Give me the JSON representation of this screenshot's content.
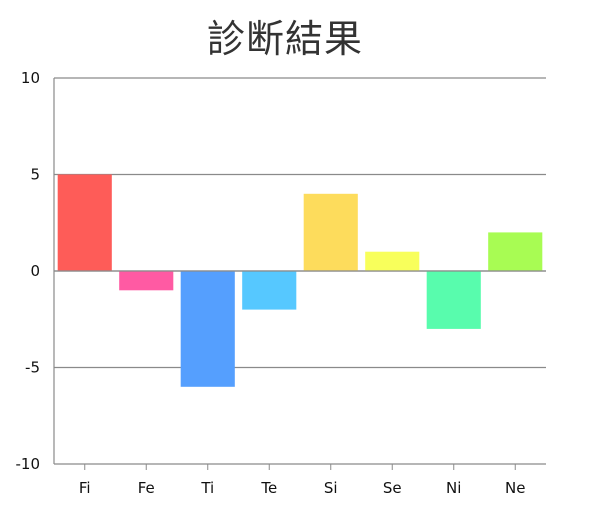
{
  "chart_data": {
    "type": "bar",
    "title": "診断結果",
    "categories": [
      "Fi",
      "Fe",
      "Ti",
      "Te",
      "Si",
      "Se",
      "Ni",
      "Ne"
    ],
    "values": [
      5,
      -1,
      -6,
      -2,
      4,
      1,
      -3,
      2
    ],
    "colors": [
      "#fe5c58",
      "#ff5aa3",
      "#559ffe",
      "#56c8ff",
      "#fddc5c",
      "#f8ff5b",
      "#58fcad",
      "#a8fc53"
    ],
    "ylim": [
      -10,
      10
    ],
    "yticks": [
      10,
      5,
      0,
      -5,
      -10
    ],
    "ytick_labels": [
      "10",
      "5",
      "0",
      "-5",
      "-10"
    ],
    "grid": true,
    "xlabel": "",
    "ylabel": ""
  }
}
